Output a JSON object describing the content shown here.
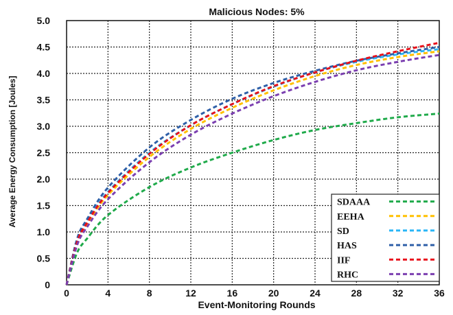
{
  "chart_data": {
    "type": "line",
    "title": "Malicious Nodes: 5%",
    "xlabel": "Event-Monitoring Rounds",
    "ylabel": "Average Energy Consumption [Joules]",
    "xlim": [
      0,
      36
    ],
    "ylim": [
      0,
      5
    ],
    "xticks": [
      "0",
      "4",
      "8",
      "12",
      "16",
      "20",
      "24",
      "28",
      "32",
      "36"
    ],
    "yticks": [
      "0",
      "0.5",
      "1.0",
      "1.5",
      "2.0",
      "2.5",
      "3.0",
      "3.5",
      "4.0",
      "4.5",
      "5.0"
    ],
    "grid": true,
    "legend_position": "bottom-right",
    "x": [
      0,
      1,
      2,
      4,
      8,
      12,
      16,
      20,
      24,
      28,
      32,
      36
    ],
    "series": [
      {
        "name": "SDAAA",
        "color": "#1faa4a",
        "values": [
          0,
          0.6,
          0.88,
          1.32,
          1.85,
          2.22,
          2.5,
          2.74,
          2.93,
          3.06,
          3.17,
          3.24
        ]
      },
      {
        "name": "EEHA",
        "color": "#ffc000",
        "values": [
          0,
          0.78,
          1.15,
          1.7,
          2.42,
          2.95,
          3.35,
          3.68,
          3.95,
          4.16,
          4.31,
          4.42
        ]
      },
      {
        "name": "SD",
        "color": "#29b6f6",
        "values": [
          0,
          0.82,
          1.2,
          1.76,
          2.5,
          3.02,
          3.42,
          3.75,
          4.02,
          4.22,
          4.36,
          4.46
        ]
      },
      {
        "name": "HAS",
        "color": "#2e5fa8",
        "values": [
          0,
          0.86,
          1.25,
          1.84,
          2.6,
          3.12,
          3.52,
          3.82,
          4.05,
          4.24,
          4.38,
          4.5
        ]
      },
      {
        "name": "IIF",
        "color": "#e8101a",
        "values": [
          0,
          0.8,
          1.18,
          1.74,
          2.48,
          3.02,
          3.42,
          3.76,
          4.02,
          4.24,
          4.42,
          4.58
        ]
      },
      {
        "name": "RHC",
        "color": "#7b3fb0",
        "values": [
          0,
          0.74,
          1.1,
          1.62,
          2.32,
          2.84,
          3.24,
          3.57,
          3.84,
          4.06,
          4.22,
          4.35
        ]
      }
    ]
  }
}
